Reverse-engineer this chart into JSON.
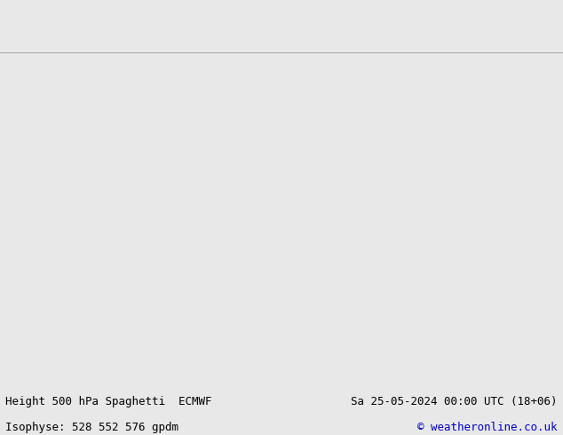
{
  "title_left": "Height 500 hPa Spaghetti  ECMWF",
  "title_right": "Sa 25-05-2024 00:00 UTC (18+06)",
  "subtitle_left": "Isophyse: 528 552 576 gpdm",
  "subtitle_right": "© weatheronline.co.uk",
  "background_color": "#e8e8e8",
  "land_color": "#c8f0c8",
  "ocean_color": "#dcdcdc",
  "text_color": "#000000",
  "title_fontsize": 9,
  "subtitle_fontsize": 9,
  "copyright_color": "#0000cc",
  "fig_width": 6.34,
  "fig_height": 4.9,
  "dpi": 100
}
